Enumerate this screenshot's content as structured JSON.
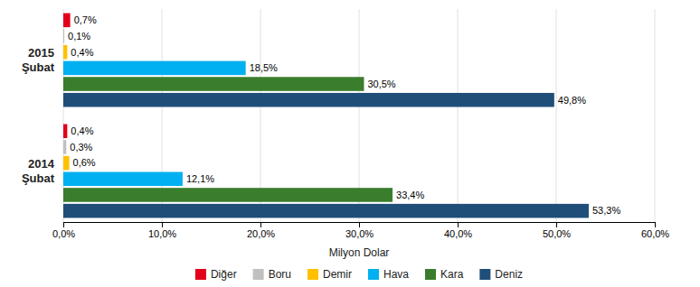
{
  "chart_data": {
    "type": "bar",
    "orientation": "horizontal",
    "categories": [
      "2015 Şubat",
      "2014 Şubat"
    ],
    "series": [
      {
        "name": "Diğer",
        "color": "#e2001a",
        "values": [
          0.7,
          0.4
        ],
        "value_labels": [
          "0,7%",
          "0,4%"
        ]
      },
      {
        "name": "Boru",
        "color": "#c0c0c0",
        "values": [
          0.1,
          0.3
        ],
        "value_labels": [
          "0,1%",
          "0,3%"
        ]
      },
      {
        "name": "Demir",
        "color": "#ffc000",
        "values": [
          0.4,
          0.6
        ],
        "value_labels": [
          "0,4%",
          "0,6%"
        ]
      },
      {
        "name": "Hava",
        "color": "#00b0f0",
        "values": [
          18.5,
          12.1
        ],
        "value_labels": [
          "18,5%",
          "12,1%"
        ]
      },
      {
        "name": "Kara",
        "color": "#3a7d2c",
        "values": [
          30.5,
          33.4
        ],
        "value_labels": [
          "30,5%",
          "33,4%"
        ]
      },
      {
        "name": "Deniz",
        "color": "#1f4e79",
        "values": [
          49.8,
          53.3
        ],
        "value_labels": [
          "49,8%",
          "53,3%"
        ]
      }
    ],
    "xlabel": "Milyon Dolar",
    "xlim": [
      0,
      60
    ],
    "xticks": [
      {
        "value": 0,
        "label": "0,0%"
      },
      {
        "value": 10,
        "label": "10,0%"
      },
      {
        "value": 20,
        "label": "20,0%"
      },
      {
        "value": 30,
        "label": "30,0%"
      },
      {
        "value": 40,
        "label": "40,0%"
      },
      {
        "value": 50,
        "label": "50,0%"
      },
      {
        "value": 60,
        "label": "60,0%"
      }
    ],
    "grid": true,
    "data_labels": true
  }
}
